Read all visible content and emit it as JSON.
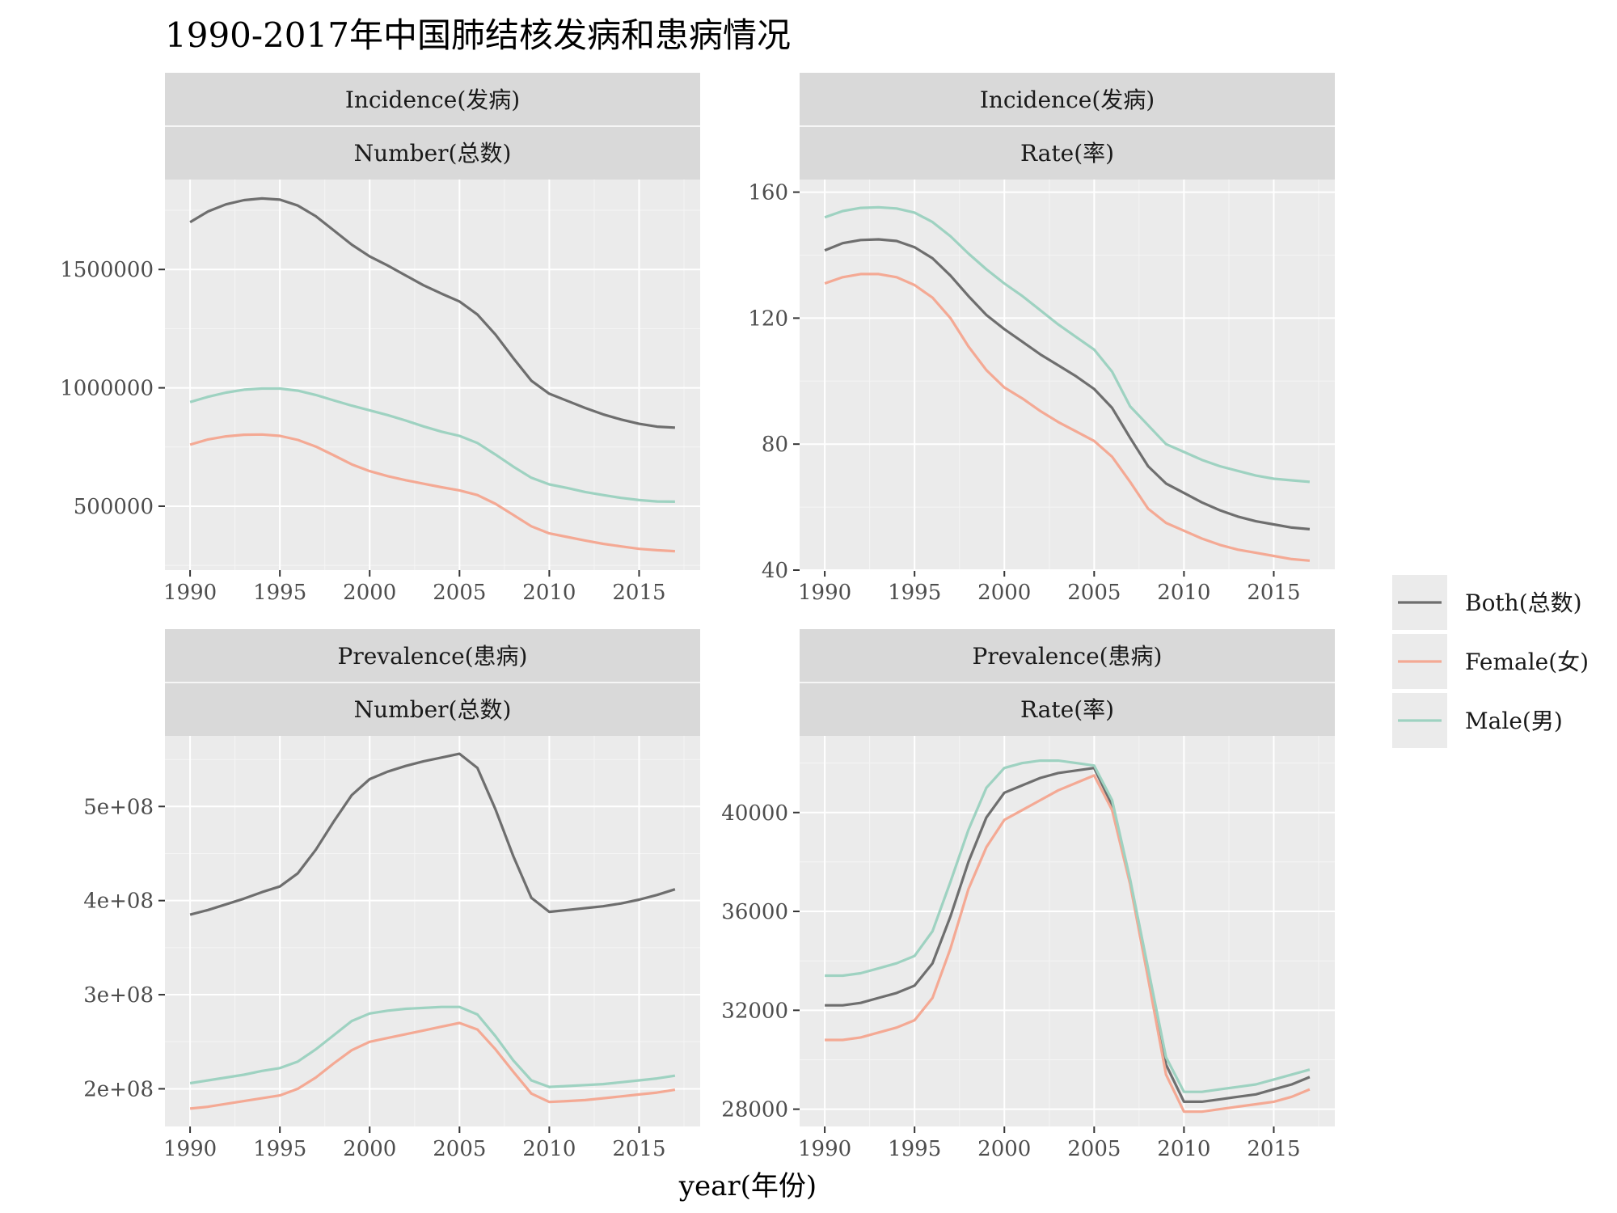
{
  "title": "1990-2017年中国肺结核发病和患病情况",
  "xlabel": "year(年份)",
  "legend": [
    {
      "name": "Both(总数)",
      "color": "#6e6e6e"
    },
    {
      "name": "Female(女)",
      "color": "#f4a994"
    },
    {
      "name": "Male(男)",
      "color": "#9ed2c1"
    }
  ],
  "chart_data": [
    {
      "type": "line",
      "facet_row": "Incidence(发病)",
      "facet_col": "Number(总数)",
      "x": [
        1990,
        1991,
        1992,
        1993,
        1994,
        1995,
        1996,
        1997,
        1998,
        1999,
        2000,
        2001,
        2002,
        2003,
        2004,
        2005,
        2006,
        2007,
        2008,
        2009,
        2010,
        2011,
        2012,
        2013,
        2014,
        2015,
        2016,
        2017
      ],
      "xticks": [
        1990,
        1995,
        2000,
        2005,
        2010,
        2015
      ],
      "ylim": [
        230000,
        1880000
      ],
      "yticks": [
        500000,
        1000000,
        1500000
      ],
      "ytick_labels": [
        "500000",
        "1000000",
        "1500000"
      ],
      "series": [
        {
          "name": "Both(总数)",
          "values": [
            1700000,
            1745000,
            1775000,
            1793000,
            1800000,
            1795000,
            1770000,
            1725000,
            1665000,
            1605000,
            1555000,
            1517000,
            1475000,
            1433000,
            1398000,
            1365000,
            1310000,
            1225000,
            1125000,
            1030000,
            975000,
            945000,
            915000,
            888000,
            866000,
            848000,
            836000,
            832000
          ]
        },
        {
          "name": "Female(女)",
          "values": [
            760000,
            782000,
            795000,
            802000,
            803000,
            797000,
            780000,
            752000,
            715000,
            677000,
            648000,
            627000,
            610000,
            595000,
            580000,
            567000,
            547000,
            510000,
            463000,
            415000,
            385000,
            370000,
            355000,
            341000,
            330000,
            320000,
            314000,
            310000
          ]
        },
        {
          "name": "Male(男)",
          "values": [
            940000,
            962000,
            980000,
            992000,
            997000,
            997000,
            988000,
            970000,
            947000,
            925000,
            905000,
            885000,
            862000,
            837000,
            815000,
            797000,
            767000,
            718000,
            667000,
            620000,
            592000,
            577000,
            560000,
            547000,
            535000,
            526000,
            520000,
            519000
          ]
        }
      ]
    },
    {
      "type": "line",
      "facet_row": "Incidence(发病)",
      "facet_col": "Rate(率)",
      "x": [
        1990,
        1991,
        1992,
        1993,
        1994,
        1995,
        1996,
        1997,
        1998,
        1999,
        2000,
        2001,
        2002,
        2003,
        2004,
        2005,
        2006,
        2007,
        2008,
        2009,
        2010,
        2011,
        2012,
        2013,
        2014,
        2015,
        2016,
        2017
      ],
      "xticks": [
        1990,
        1995,
        2000,
        2005,
        2010,
        2015
      ],
      "ylim": [
        40,
        164
      ],
      "yticks": [
        40,
        80,
        120,
        160
      ],
      "ytick_labels": [
        "40",
        "80",
        "120",
        "160"
      ],
      "series": [
        {
          "name": "Both(总数)",
          "values": [
            141.5,
            143.8,
            144.8,
            145,
            144.5,
            142.5,
            139,
            133.5,
            127,
            121,
            116.5,
            112.5,
            108.5,
            105,
            101.5,
            97.5,
            91.5,
            82,
            73,
            67.5,
            64.5,
            61.5,
            59,
            57,
            55.5,
            54.5,
            53.5,
            53
          ]
        },
        {
          "name": "Female(女)",
          "values": [
            131,
            133,
            134,
            134,
            133,
            130.5,
            126.5,
            120,
            111,
            103.5,
            98,
            94.5,
            90.5,
            87,
            84,
            81,
            76,
            68,
            59.5,
            55,
            52.5,
            50,
            48,
            46.5,
            45.5,
            44.5,
            43.5,
            43
          ]
        },
        {
          "name": "Male(男)",
          "values": [
            152,
            154,
            155,
            155.2,
            154.8,
            153.5,
            150.5,
            146,
            140.5,
            135.5,
            131,
            127,
            122.5,
            118,
            114,
            110,
            103,
            92,
            86,
            80,
            77.5,
            75,
            73,
            71.5,
            70,
            69,
            68.5,
            68
          ]
        }
      ]
    },
    {
      "type": "line",
      "facet_row": "Prevalence(患病)",
      "facet_col": "Number(总数)",
      "x": [
        1990,
        1991,
        1992,
        1993,
        1994,
        1995,
        1996,
        1997,
        1998,
        1999,
        2000,
        2001,
        2002,
        2003,
        2004,
        2005,
        2006,
        2007,
        2008,
        2009,
        2010,
        2011,
        2012,
        2013,
        2014,
        2015,
        2016,
        2017
      ],
      "xticks": [
        1990,
        1995,
        2000,
        2005,
        2010,
        2015
      ],
      "ylim": [
        160000000,
        575000000
      ],
      "yticks": [
        200000000,
        300000000,
        400000000,
        500000000
      ],
      "ytick_labels": [
        "2e+08",
        "3e+08",
        "4e+08",
        "5e+08"
      ],
      "series": [
        {
          "name": "Both(总数)",
          "values": [
            385000000,
            390000000,
            396000000,
            402000000,
            409000000,
            415000000,
            429000000,
            454000000,
            484000000,
            512000000,
            529000000,
            537000000,
            543000000,
            548000000,
            552000000,
            556000000,
            541000000,
            497000000,
            447000000,
            403000000,
            388000000,
            390000000,
            392000000,
            394000000,
            397000000,
            401000000,
            406000000,
            412000000
          ]
        },
        {
          "name": "Female(女)",
          "values": [
            179000000,
            181000000,
            184000000,
            187000000,
            190000000,
            193000000,
            200000000,
            212000000,
            227000000,
            241000000,
            250000000,
            254000000,
            258000000,
            262000000,
            266000000,
            270000000,
            263000000,
            242000000,
            218000000,
            195000000,
            186000000,
            187000000,
            188000000,
            190000000,
            192000000,
            194000000,
            196000000,
            199000000
          ]
        },
        {
          "name": "Male(男)",
          "values": [
            206000000,
            209000000,
            212000000,
            215000000,
            219000000,
            222000000,
            229000000,
            242000000,
            257000000,
            272000000,
            280000000,
            283000000,
            285000000,
            286000000,
            287000000,
            287000000,
            279000000,
            256000000,
            230000000,
            209000000,
            202000000,
            203000000,
            204000000,
            205000000,
            207000000,
            209000000,
            211000000,
            214000000
          ]
        }
      ]
    },
    {
      "type": "line",
      "facet_row": "Prevalence(患病)",
      "facet_col": "Rate(率)",
      "x": [
        1990,
        1991,
        1992,
        1993,
        1994,
        1995,
        1996,
        1997,
        1998,
        1999,
        2000,
        2001,
        2002,
        2003,
        2004,
        2005,
        2006,
        2007,
        2008,
        2009,
        2010,
        2011,
        2012,
        2013,
        2014,
        2015,
        2016,
        2017
      ],
      "xticks": [
        1990,
        1995,
        2000,
        2005,
        2010,
        2015
      ],
      "ylim": [
        27300,
        43100
      ],
      "yticks": [
        28000,
        32000,
        36000,
        40000
      ],
      "ytick_labels": [
        "28000",
        "32000",
        "36000",
        "40000"
      ],
      "series": [
        {
          "name": "Both(总数)",
          "values": [
            32200,
            32200,
            32300,
            32500,
            32700,
            33000,
            33900,
            35800,
            38000,
            39800,
            40800,
            41100,
            41400,
            41600,
            41700,
            41800,
            40300,
            37200,
            33500,
            29800,
            28300,
            28300,
            28400,
            28500,
            28600,
            28800,
            29000,
            29300
          ]
        },
        {
          "name": "Female(女)",
          "values": [
            30800,
            30800,
            30900,
            31100,
            31300,
            31600,
            32500,
            34500,
            36900,
            38600,
            39700,
            40100,
            40500,
            40900,
            41200,
            41500,
            40100,
            37100,
            33300,
            29400,
            27900,
            27900,
            28000,
            28100,
            28200,
            28300,
            28500,
            28800
          ]
        },
        {
          "name": "Male(男)",
          "values": [
            33400,
            33400,
            33500,
            33700,
            33900,
            34200,
            35200,
            37200,
            39300,
            41000,
            41800,
            42000,
            42100,
            42100,
            42000,
            41900,
            40500,
            37300,
            33700,
            30100,
            28700,
            28700,
            28800,
            28900,
            29000,
            29200,
            29400,
            29600
          ]
        }
      ]
    }
  ]
}
